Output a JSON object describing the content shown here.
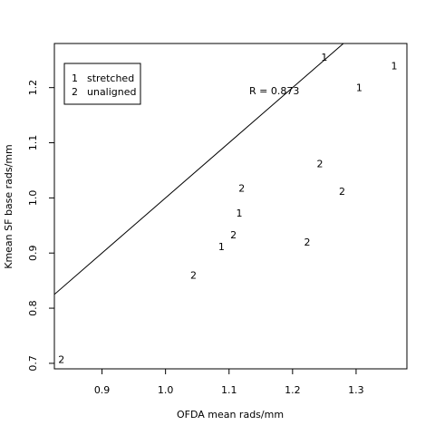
{
  "chart_data": {
    "type": "scatter",
    "xlabel": "OFDA mean rads/mm",
    "ylabel": "Kmean SF base rads/mm",
    "xlim": [
      0.825,
      1.38
    ],
    "ylim": [
      0.69,
      1.28
    ],
    "xticks": [
      0.9,
      1.0,
      1.1,
      1.2,
      1.3
    ],
    "yticks": [
      0.7,
      0.8,
      0.9,
      1.0,
      1.1,
      1.2
    ],
    "xtick_labels": [
      "0.9",
      "1.0",
      "1.1",
      "1.2",
      "1.3"
    ],
    "ytick_labels": [
      "0.7",
      "0.8",
      "0.9",
      "1.0",
      "1.1",
      "1.2"
    ],
    "grid": false,
    "legend_position": "top-left",
    "legend": [
      {
        "symbol": "1",
        "label": "stretched"
      },
      {
        "symbol": "2",
        "label": "unaligned"
      }
    ],
    "annotation": "R = 0.873",
    "reference_line": {
      "slope": 1,
      "intercept": 0
    },
    "points": [
      {
        "x": 1.25,
        "y": 1.255,
        "label": "1"
      },
      {
        "x": 1.36,
        "y": 1.24,
        "label": "1"
      },
      {
        "x": 1.305,
        "y": 1.2,
        "label": "1"
      },
      {
        "x": 1.243,
        "y": 1.062,
        "label": "2"
      },
      {
        "x": 1.278,
        "y": 1.012,
        "label": "2"
      },
      {
        "x": 1.12,
        "y": 1.018,
        "label": "2"
      },
      {
        "x": 1.116,
        "y": 0.973,
        "label": "1"
      },
      {
        "x": 1.107,
        "y": 0.933,
        "label": "2"
      },
      {
        "x": 1.088,
        "y": 0.912,
        "label": "1"
      },
      {
        "x": 1.223,
        "y": 0.92,
        "label": "2"
      },
      {
        "x": 1.044,
        "y": 0.86,
        "label": "2"
      },
      {
        "x": 0.836,
        "y": 0.707,
        "label": "2"
      }
    ]
  }
}
